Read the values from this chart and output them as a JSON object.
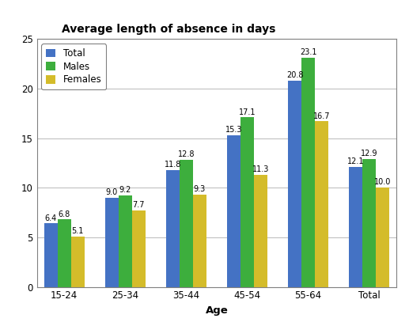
{
  "categories": [
    "15-24",
    "25-34",
    "35-44",
    "45-54",
    "55-64",
    "Total"
  ],
  "series": {
    "Total": [
      6.4,
      9.0,
      11.8,
      15.3,
      20.8,
      12.1
    ],
    "Males": [
      6.8,
      9.2,
      12.8,
      17.1,
      23.1,
      12.9
    ],
    "Females": [
      5.1,
      7.7,
      9.3,
      11.3,
      16.7,
      10.0
    ]
  },
  "colors": {
    "Total": "#4472c4",
    "Males": "#3dae3d",
    "Females": "#d4bc2a"
  },
  "title": "Average length of absence in days",
  "xlabel": "Age",
  "ylim": [
    0,
    25
  ],
  "yticks": [
    0,
    5,
    10,
    15,
    20,
    25
  ],
  "legend_order": [
    "Total",
    "Males",
    "Females"
  ],
  "bar_width": 0.22,
  "title_fontsize": 10,
  "label_fontsize": 7,
  "axis_fontsize": 8.5,
  "legend_fontsize": 8.5,
  "background_color": "#ffffff",
  "grid_color": "#c0c0c0",
  "spine_color": "#808080"
}
